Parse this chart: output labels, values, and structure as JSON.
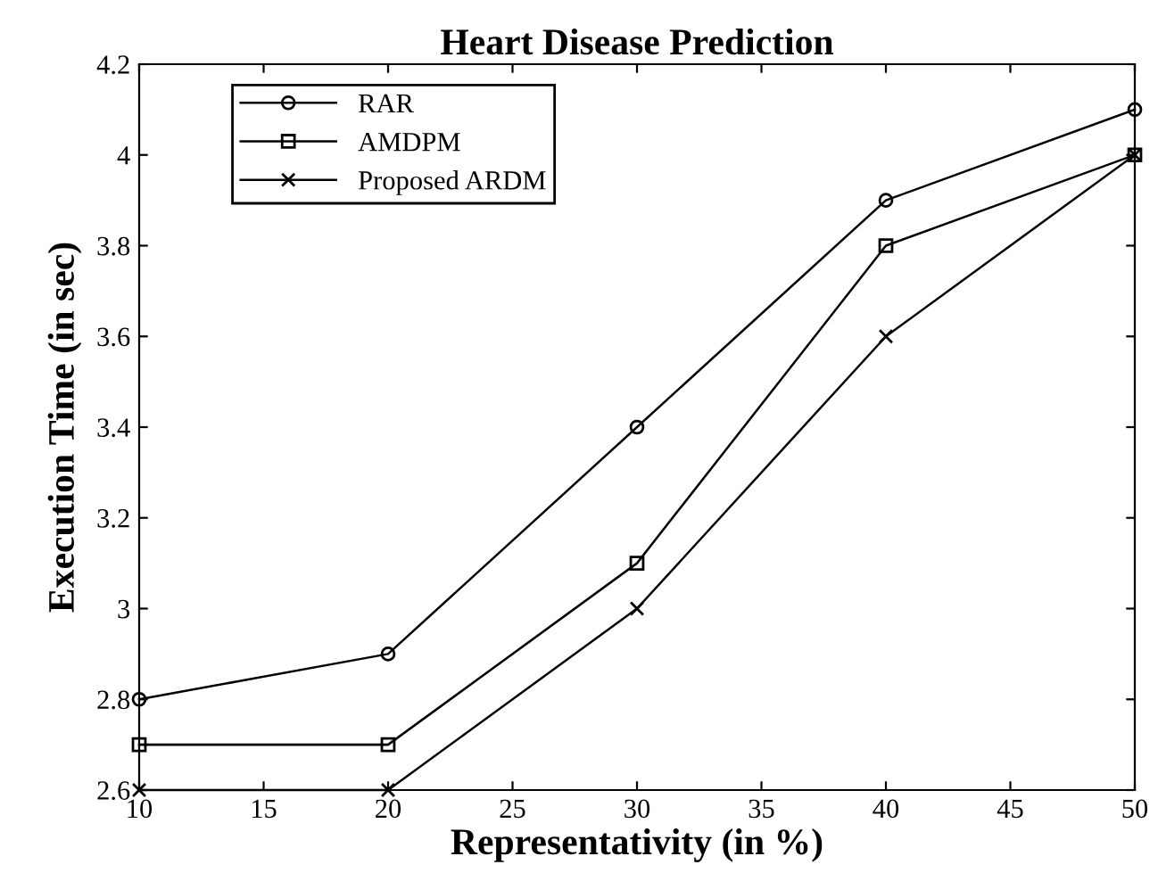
{
  "chart_data": {
    "type": "line",
    "title": "Heart Disease Prediction",
    "xlabel": "Representativity (in %)",
    "ylabel": "Execution Time (in sec)",
    "x": [
      10,
      20,
      30,
      40,
      50
    ],
    "series": [
      {
        "name": "RAR",
        "color": "#000000",
        "marker": "circle",
        "values": [
          2.8,
          2.9,
          3.4,
          3.9,
          4.1
        ]
      },
      {
        "name": "AMDPM",
        "color": "#000000",
        "marker": "square",
        "values": [
          2.7,
          2.7,
          3.1,
          3.8,
          4.0
        ]
      },
      {
        "name": "Proposed ARDM",
        "color": "#000000",
        "marker": "cross",
        "values": [
          2.6,
          2.6,
          3.0,
          3.6,
          4.0
        ]
      }
    ],
    "xlim": [
      10,
      50
    ],
    "ylim": [
      2.6,
      4.2
    ],
    "xticks": [
      10,
      15,
      20,
      25,
      30,
      35,
      40,
      45,
      50
    ],
    "yticks": [
      2.6,
      2.8,
      3,
      3.2,
      3.4,
      3.6,
      3.8,
      4,
      4.2
    ],
    "grid": false,
    "legend": "top left",
    "line_style": "solid"
  }
}
